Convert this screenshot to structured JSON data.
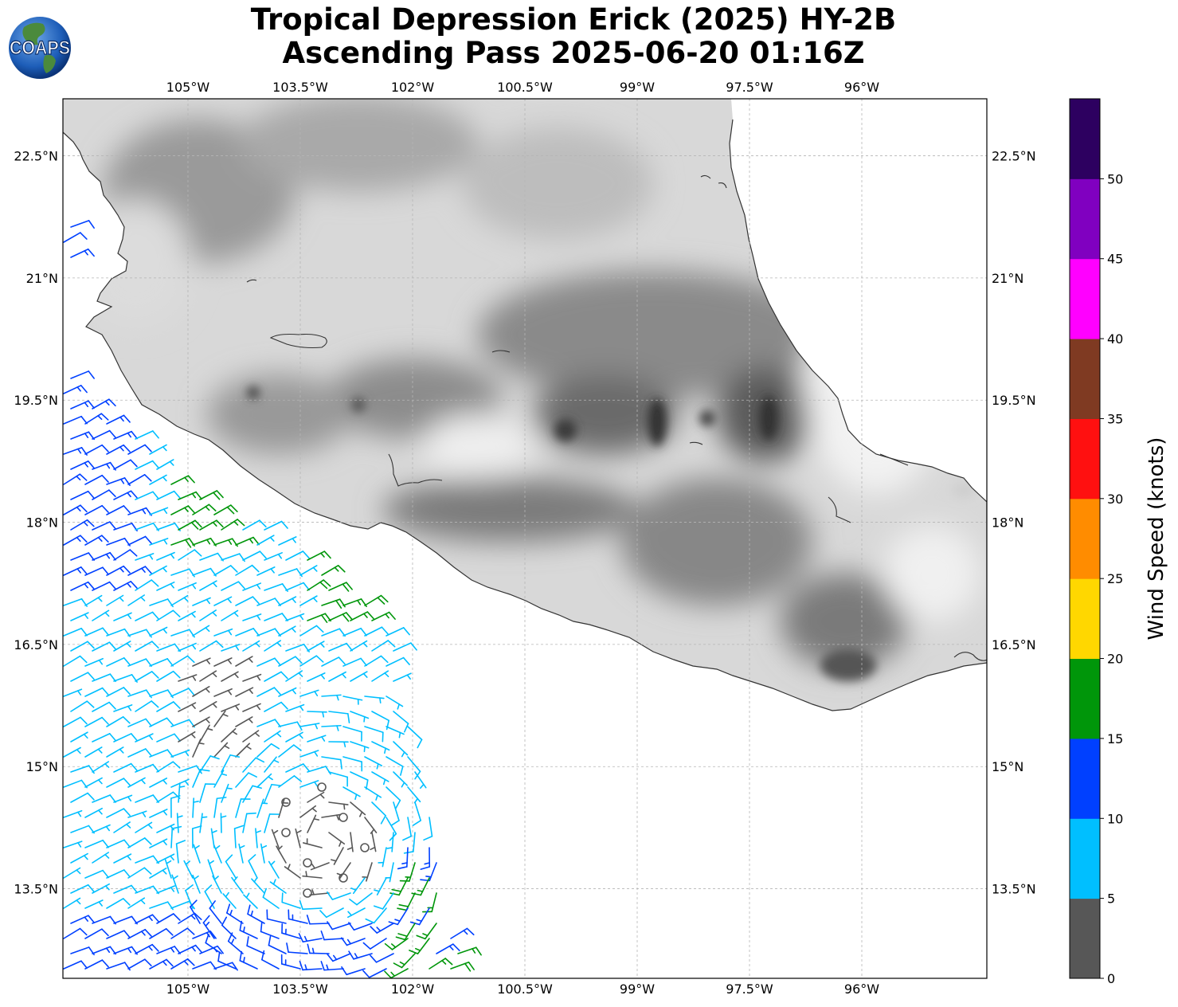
{
  "title": {
    "line1": "Tropical Depression Erick (2025) HY-2B",
    "line2": "Ascending Pass 2025-06-20 01:16Z"
  },
  "logo": {
    "text": "COAPS",
    "icon": "globe-icon"
  },
  "map": {
    "lon_range": [
      -106.67,
      -94.33
    ],
    "lat_range": [
      12.4,
      23.2
    ],
    "lon_ticks": [
      {
        "value": -105,
        "label": "105°W"
      },
      {
        "value": -103.5,
        "label": "103.5°W"
      },
      {
        "value": -102,
        "label": "102°W"
      },
      {
        "value": -100.5,
        "label": "100.5°W"
      },
      {
        "value": -99,
        "label": "99°W"
      },
      {
        "value": -97.5,
        "label": "97.5°W"
      },
      {
        "value": -96,
        "label": "96°W"
      }
    ],
    "lat_ticks": [
      {
        "value": 22.5,
        "label": "22.5°N"
      },
      {
        "value": 21,
        "label": "21°N"
      },
      {
        "value": 19.5,
        "label": "19.5°N"
      },
      {
        "value": 18,
        "label": "18°N"
      },
      {
        "value": 16.5,
        "label": "16.5°N"
      },
      {
        "value": 15,
        "label": "15°N"
      },
      {
        "value": 13.5,
        "label": "13.5°N"
      }
    ],
    "gridlines": true,
    "background": "grayscale terrain over land, white ocean"
  },
  "colorbar": {
    "label": "Wind Speed (knots)",
    "ticks": [
      "0",
      "5",
      "10",
      "15",
      "20",
      "25",
      "30",
      "35",
      "40",
      "45",
      "50"
    ],
    "bins": [
      {
        "min": 0,
        "max": 5,
        "color": "#575757"
      },
      {
        "min": 5,
        "max": 10,
        "color": "#00bfff"
      },
      {
        "min": 10,
        "max": 15,
        "color": "#0040ff"
      },
      {
        "min": 15,
        "max": 20,
        "color": "#00960a"
      },
      {
        "min": 20,
        "max": 25,
        "color": "#ffd700"
      },
      {
        "min": 25,
        "max": 30,
        "color": "#ff8c00"
      },
      {
        "min": 30,
        "max": 35,
        "color": "#ff1010"
      },
      {
        "min": 35,
        "max": 40,
        "color": "#7f3a22"
      },
      {
        "min": 40,
        "max": 45,
        "color": "#ff00ff"
      },
      {
        "min": 45,
        "max": 50,
        "color": "#8000c0"
      },
      {
        "min": 50,
        "max": 55,
        "color": "#2d0060"
      }
    ]
  }
}
